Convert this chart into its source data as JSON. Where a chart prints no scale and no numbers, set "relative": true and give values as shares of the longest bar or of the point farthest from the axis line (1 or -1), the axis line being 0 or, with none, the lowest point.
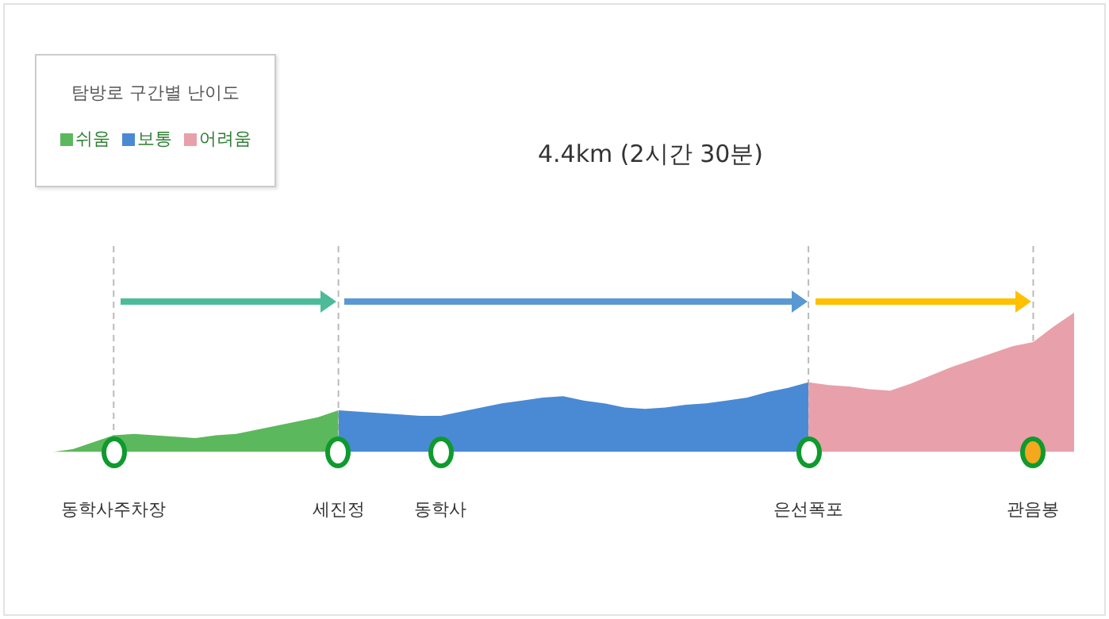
{
  "chart_data": {
    "type": "area",
    "title": "4.4km (2시간 30분)",
    "relative": true,
    "legend": "top left",
    "legend_title": "탐방로 구간별 난이도",
    "categories": [
      null,
      null,
      null,
      "동학사주차장",
      null,
      null,
      null,
      null,
      null,
      null,
      null,
      null,
      null,
      null,
      "세진정",
      null,
      null,
      null,
      null,
      "동학사",
      null,
      null,
      null,
      null,
      null,
      null,
      null,
      null,
      null,
      null,
      null,
      null,
      null,
      null,
      null,
      null,
      null,
      "은선폭포",
      null,
      null,
      null,
      null,
      null,
      null,
      null,
      null,
      null,
      null,
      "관음봉",
      null,
      null
    ],
    "series": [
      {
        "name": "쉬움",
        "color": "#5cb85c",
        "values": [
          0,
          0.02,
          0.07,
          0.12,
          0.13,
          0.12,
          0.11,
          0.1,
          0.12,
          0.13,
          0.16,
          0.19,
          0.22,
          0.25,
          0.3,
          null,
          null,
          null,
          null,
          null,
          null,
          null,
          null,
          null,
          null,
          null,
          null,
          null,
          null,
          null,
          null,
          null,
          null,
          null,
          null,
          null,
          null,
          null,
          null,
          null,
          null,
          null,
          null,
          null,
          null,
          null,
          null,
          null,
          null,
          null,
          null
        ]
      },
      {
        "name": "보통",
        "color": "#4a8ad4",
        "values": [
          null,
          null,
          null,
          null,
          null,
          null,
          null,
          null,
          null,
          null,
          null,
          null,
          null,
          null,
          0.3,
          0.29,
          0.28,
          0.27,
          0.26,
          0.26,
          0.29,
          0.32,
          0.35,
          0.37,
          0.39,
          0.4,
          0.37,
          0.35,
          0.32,
          0.31,
          0.32,
          0.34,
          0.35,
          0.37,
          0.39,
          0.43,
          0.46,
          0.5,
          null,
          null,
          null,
          null,
          null,
          null,
          null,
          null,
          null,
          null,
          null,
          null,
          null
        ]
      },
      {
        "name": "어려움",
        "color": "#e8a0aa",
        "values": [
          null,
          null,
          null,
          null,
          null,
          null,
          null,
          null,
          null,
          null,
          null,
          null,
          null,
          null,
          null,
          null,
          null,
          null,
          null,
          null,
          null,
          null,
          null,
          null,
          null,
          null,
          null,
          null,
          null,
          null,
          null,
          null,
          null,
          null,
          null,
          null,
          null,
          0.5,
          0.48,
          0.47,
          0.45,
          0.44,
          0.49,
          0.55,
          0.61,
          0.66,
          0.71,
          0.76,
          0.79,
          0.9,
          1
        ]
      }
    ],
    "ref_lines": [
      {
        "axis": "x",
        "value": "동학사주차장",
        "color": "#bbbbbb",
        "line_style": "dashed"
      },
      {
        "axis": "x",
        "value": "세진정",
        "color": "#bbbbbb",
        "line_style": "dashed"
      },
      {
        "axis": "x",
        "value": "은선폭포",
        "color": "#bbbbbb",
        "line_style": "dashed"
      },
      {
        "axis": "x",
        "value": "관음봉",
        "color": "#bbbbbb",
        "line_style": "dashed"
      }
    ]
  }
}
